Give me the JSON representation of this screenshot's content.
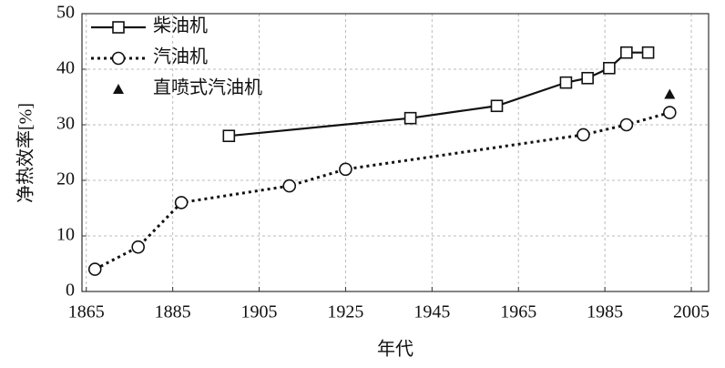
{
  "chart_data": {
    "type": "line",
    "x_label": "年代",
    "y_label": "净热效率[%]",
    "xlim": [
      1864,
      2009
    ],
    "xticks": [
      1865,
      1885,
      1905,
      1925,
      1945,
      1965,
      1985,
      2005
    ],
    "ylim": [
      0,
      50
    ],
    "yticks": [
      0,
      10,
      20,
      30,
      40,
      50
    ],
    "grid": true,
    "series": [
      {
        "name": "柴油机",
        "color": "#111111",
        "marker": "square",
        "linestyle": "solid",
        "x": [
          1898,
          1940,
          1960,
          1976,
          1981,
          1986,
          1990,
          1995
        ],
        "values": [
          28,
          31.2,
          33.4,
          37.6,
          38.4,
          40.2,
          43,
          43
        ]
      },
      {
        "name": "汽油机",
        "color": "#111111",
        "marker": "circle",
        "linestyle": "dotted",
        "x": [
          1867,
          1877,
          1887,
          1912,
          1925,
          1980,
          1990,
          2000
        ],
        "values": [
          4,
          8,
          16,
          19,
          22,
          28.2,
          30,
          32.2
        ]
      },
      {
        "name": "直喷式汽油机",
        "color": "#111111",
        "marker": "triangle",
        "linestyle": "none",
        "x": [
          2000
        ],
        "values": [
          35.5
        ]
      }
    ]
  }
}
